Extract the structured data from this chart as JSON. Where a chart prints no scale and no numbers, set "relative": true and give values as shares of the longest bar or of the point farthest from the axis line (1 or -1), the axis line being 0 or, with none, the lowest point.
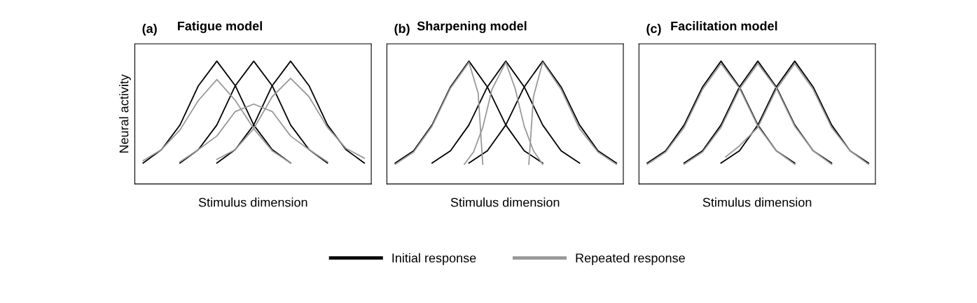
{
  "chart_data": [
    {
      "type": "line",
      "title": "Fatigue model",
      "annotations": [
        "(a)"
      ],
      "xlabel": "Stimulus dimension",
      "ylabel": "Neural activity",
      "relative": true,
      "legend": "bottom",
      "categories": [
        null,
        null,
        null,
        null,
        null,
        null,
        null,
        null,
        null,
        null,
        null,
        null,
        null,
        null,
        null,
        null,
        null,
        null,
        null,
        null,
        null,
        null,
        null,
        null,
        null,
        null,
        null,
        null,
        null,
        null,
        null,
        null,
        null,
        null,
        null,
        null,
        null,
        null,
        null,
        null,
        null,
        null,
        null,
        null,
        null,
        null,
        null,
        null,
        null
      ],
      "series": [
        {
          "name": "Initial response",
          "color": "#000000",
          "values": [
            0.17,
            null,
            null,
            null,
            0.28,
            null,
            null,
            null,
            0.48,
            null,
            null,
            null,
            0.8,
            null,
            null,
            null,
            1,
            null,
            null,
            null,
            0.8,
            null,
            null,
            null,
            0.48,
            null,
            null,
            null,
            0.28,
            null,
            null,
            null,
            0.17,
            null,
            null,
            null,
            null,
            null,
            null,
            null,
            null,
            null,
            null,
            null,
            null,
            null,
            null,
            null,
            null
          ]
        },
        {
          "color": "#000000",
          "values": [
            null,
            null,
            null,
            null,
            null,
            null,
            null,
            null,
            0.17,
            null,
            null,
            null,
            0.28,
            null,
            null,
            null,
            0.48,
            null,
            null,
            null,
            0.8,
            null,
            null,
            null,
            1,
            null,
            null,
            null,
            0.8,
            null,
            null,
            null,
            0.48,
            null,
            null,
            null,
            0.28,
            null,
            null,
            null,
            0.17,
            null,
            null,
            null,
            null,
            null,
            null,
            null,
            null
          ]
        },
        {
          "color": "#000000",
          "values": [
            null,
            null,
            null,
            null,
            null,
            null,
            null,
            null,
            null,
            null,
            null,
            null,
            null,
            null,
            null,
            null,
            0.17,
            null,
            null,
            null,
            0.28,
            null,
            null,
            null,
            0.48,
            null,
            null,
            null,
            0.8,
            null,
            null,
            null,
            1,
            null,
            null,
            null,
            0.8,
            null,
            null,
            null,
            0.48,
            null,
            null,
            null,
            0.28,
            null,
            null,
            null,
            0.17
          ]
        },
        {
          "name": "Repeated response",
          "color": "#999999",
          "values": [
            0.19,
            null,
            null,
            null,
            0.28,
            null,
            null,
            null,
            0.44,
            null,
            null,
            null,
            0.68,
            null,
            null,
            null,
            0.85,
            null,
            null,
            null,
            0.68,
            null,
            null,
            null,
            0.45,
            null,
            null,
            null,
            0.27,
            null,
            null,
            null,
            0.17,
            null,
            null,
            null,
            null,
            null,
            null,
            null,
            null,
            null,
            null,
            null,
            null,
            null,
            null,
            null,
            null
          ]
        },
        {
          "color": "#999999",
          "values": [
            null,
            null,
            null,
            null,
            null,
            null,
            null,
            null,
            0.18,
            null,
            null,
            null,
            0.28,
            null,
            null,
            null,
            0.39,
            null,
            null,
            null,
            0.59,
            null,
            null,
            null,
            0.65,
            null,
            null,
            null,
            0.59,
            null,
            null,
            null,
            0.39,
            null,
            null,
            null,
            0.28,
            null,
            null,
            null,
            0.18,
            null,
            null,
            null,
            null,
            null,
            null,
            null,
            null
          ]
        },
        {
          "color": "#999999",
          "values": [
            null,
            null,
            null,
            null,
            null,
            null,
            null,
            null,
            null,
            null,
            null,
            null,
            null,
            null,
            null,
            null,
            0.2,
            null,
            null,
            null,
            0.28,
            null,
            null,
            null,
            0.45,
            null,
            null,
            null,
            0.71,
            null,
            null,
            null,
            0.86,
            null,
            null,
            null,
            0.71,
            null,
            null,
            null,
            0.46,
            null,
            null,
            null,
            0.29,
            null,
            null,
            null,
            0.21
          ]
        }
      ]
    },
    {
      "type": "line",
      "title": "Sharpening model",
      "annotations": [
        "(b)"
      ],
      "xlabel": "Stimulus dimension",
      "relative": true,
      "categories": [
        null,
        null,
        null,
        null,
        null,
        null,
        null,
        null,
        null,
        null,
        null,
        null,
        null,
        null,
        null,
        null,
        null,
        null,
        null,
        null,
        null,
        null,
        null,
        null,
        null,
        null,
        null,
        null,
        null,
        null,
        null,
        null,
        null,
        null,
        null,
        null,
        null,
        null,
        null,
        null,
        null,
        null,
        null,
        null,
        null,
        null,
        null,
        null,
        null
      ],
      "series": [
        {
          "color": "#000000",
          "values": [
            0.17,
            null,
            null,
            null,
            0.27,
            null,
            null,
            null,
            0.48,
            null,
            null,
            null,
            0.79,
            null,
            null,
            null,
            1,
            null,
            null,
            null,
            0.79,
            null,
            null,
            null,
            0.48,
            null,
            null,
            null,
            0.27,
            null,
            null,
            null,
            0.17,
            null,
            null,
            null,
            null,
            null,
            null,
            null,
            null,
            null,
            null,
            null,
            null,
            null,
            null,
            null,
            null
          ]
        },
        {
          "color": "#000000",
          "values": [
            null,
            null,
            null,
            null,
            null,
            null,
            null,
            null,
            0.17,
            null,
            null,
            null,
            0.27,
            null,
            null,
            null,
            0.48,
            null,
            null,
            null,
            0.79,
            null,
            null,
            null,
            1,
            null,
            null,
            null,
            0.79,
            null,
            null,
            null,
            0.48,
            null,
            null,
            null,
            0.27,
            null,
            null,
            null,
            0.17,
            null,
            null,
            null,
            null,
            null,
            null,
            null,
            null
          ]
        },
        {
          "color": "#000000",
          "values": [
            null,
            null,
            null,
            null,
            null,
            null,
            null,
            null,
            null,
            null,
            null,
            null,
            null,
            null,
            null,
            null,
            0.17,
            null,
            null,
            null,
            0.27,
            null,
            null,
            null,
            0.48,
            null,
            null,
            null,
            0.79,
            null,
            null,
            null,
            1,
            null,
            null,
            null,
            0.79,
            null,
            null,
            null,
            0.48,
            null,
            null,
            null,
            0.27,
            null,
            null,
            null,
            0.17
          ]
        },
        {
          "color": "#999999",
          "values": [
            0.16,
            null,
            null,
            null,
            0.26,
            null,
            null,
            null,
            0.47,
            null,
            null,
            null,
            0.78,
            null,
            null,
            null,
            0.99,
            null,
            0.74,
            0.16,
            null,
            null,
            null,
            null,
            null,
            null,
            null,
            null,
            null,
            null,
            null,
            null,
            null,
            null,
            null,
            null,
            null,
            null,
            null,
            null,
            null,
            null,
            null,
            null,
            null,
            null,
            null,
            null,
            null
          ]
        },
        {
          "color": "#999999",
          "values": [
            null,
            null,
            null,
            null,
            null,
            null,
            null,
            null,
            null,
            null,
            null,
            null,
            null,
            null,
            null,
            0.16,
            null,
            0.26,
            null,
            0.46,
            null,
            0.77,
            null,
            null,
            0.99,
            null,
            0.78,
            null,
            0.47,
            null,
            0.27,
            null,
            0.16,
            null,
            null,
            null,
            null,
            null,
            null,
            null,
            null,
            null,
            null,
            null,
            null,
            null,
            null,
            null,
            null
          ]
        },
        {
          "color": "#999999",
          "values": [
            null,
            null,
            null,
            null,
            null,
            null,
            null,
            null,
            null,
            null,
            null,
            null,
            null,
            null,
            null,
            null,
            null,
            null,
            null,
            null,
            null,
            null,
            null,
            null,
            null,
            null,
            null,
            null,
            null,
            0.16,
            0.71,
            null,
            0.99,
            null,
            null,
            null,
            0.77,
            null,
            null,
            null,
            0.45,
            null,
            null,
            null,
            0.26,
            null,
            null,
            null,
            0.16
          ]
        }
      ]
    },
    {
      "type": "line",
      "title": "Facilitation model",
      "annotations": [
        "(c)"
      ],
      "xlabel": "Stimulus dimension",
      "relative": true,
      "categories": [
        null,
        null,
        null,
        null,
        null,
        null,
        null,
        null,
        null,
        null,
        null,
        null,
        null,
        null,
        null,
        null,
        null,
        null,
        null,
        null,
        null,
        null,
        null,
        null,
        null,
        null,
        null,
        null,
        null,
        null,
        null,
        null,
        null,
        null,
        null,
        null,
        null,
        null,
        null,
        null,
        null,
        null,
        null,
        null,
        null,
        null,
        null,
        null,
        null
      ],
      "series": [
        {
          "color": "#000000",
          "values": [
            0.17,
            null,
            null,
            null,
            0.27,
            null,
            null,
            null,
            0.48,
            null,
            null,
            null,
            0.79,
            null,
            null,
            null,
            1,
            null,
            null,
            null,
            0.79,
            null,
            null,
            null,
            0.48,
            null,
            null,
            null,
            0.27,
            null,
            null,
            null,
            0.17,
            null,
            null,
            null,
            null,
            null,
            null,
            null,
            null,
            null,
            null,
            null,
            null,
            null,
            null,
            null,
            null
          ]
        },
        {
          "color": "#000000",
          "values": [
            null,
            null,
            null,
            null,
            null,
            null,
            null,
            null,
            0.17,
            null,
            null,
            null,
            0.27,
            null,
            null,
            null,
            0.48,
            null,
            null,
            null,
            0.79,
            null,
            null,
            null,
            1,
            null,
            null,
            null,
            0.79,
            null,
            null,
            null,
            0.48,
            null,
            null,
            null,
            0.27,
            null,
            null,
            null,
            0.17,
            null,
            null,
            null,
            null,
            null,
            null,
            null,
            null
          ]
        },
        {
          "color": "#000000",
          "values": [
            null,
            null,
            null,
            null,
            null,
            null,
            null,
            null,
            null,
            null,
            null,
            null,
            null,
            null,
            null,
            null,
            0.17,
            null,
            null,
            null,
            0.27,
            null,
            null,
            null,
            0.48,
            null,
            null,
            null,
            0.79,
            null,
            null,
            null,
            1,
            null,
            null,
            null,
            0.79,
            null,
            null,
            null,
            0.48,
            null,
            null,
            null,
            0.27,
            null,
            null,
            null,
            0.17
          ]
        },
        {
          "color": "#999999",
          "values": [
            0.16,
            null,
            null,
            null,
            0.26,
            null,
            null,
            null,
            0.46,
            null,
            null,
            null,
            0.77,
            null,
            null,
            null,
            0.98,
            null,
            null,
            null,
            0.78,
            null,
            null,
            null,
            0.47,
            null,
            null,
            null,
            0.27,
            null,
            null,
            null,
            0.16,
            null,
            null,
            null,
            null,
            null,
            null,
            null,
            null,
            null,
            null,
            null,
            null,
            null,
            null,
            null,
            null
          ]
        },
        {
          "color": "#999999",
          "values": [
            null,
            null,
            null,
            null,
            null,
            null,
            null,
            null,
            0.16,
            null,
            null,
            null,
            0.26,
            null,
            null,
            null,
            0.46,
            null,
            null,
            null,
            0.77,
            null,
            null,
            null,
            0.98,
            null,
            null,
            null,
            0.78,
            null,
            null,
            null,
            0.47,
            null,
            null,
            null,
            0.27,
            null,
            null,
            null,
            0.16,
            null,
            null,
            null,
            null,
            null,
            null,
            null,
            null
          ]
        },
        {
          "color": "#999999",
          "values": [
            null,
            null,
            null,
            null,
            null,
            null,
            null,
            null,
            null,
            null,
            null,
            null,
            null,
            null,
            null,
            null,
            null,
            0.22,
            null,
            null,
            0.31,
            null,
            null,
            null,
            0.46,
            null,
            null,
            null,
            0.77,
            null,
            null,
            null,
            0.98,
            null,
            null,
            null,
            0.77,
            null,
            null,
            null,
            0.46,
            null,
            null,
            null,
            0.27,
            null,
            null,
            null,
            0.16
          ]
        }
      ]
    }
  ]
}
